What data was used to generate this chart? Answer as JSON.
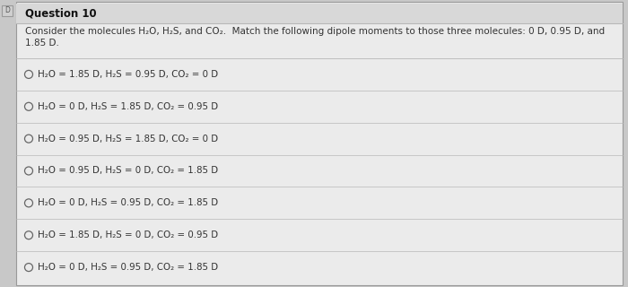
{
  "title": "Question 10",
  "prompt_line1": "Consider the molecules H₂O, H₂S, and CO₂.  Match the following dipole moments to those three molecules: 0 D, 0.95 D, and",
  "prompt_line2": "1.85 D.",
  "options": [
    "H₂O = 1.85 D, H₂S = 0.95 D, CO₂ = 0 D",
    "H₂O = 0 D, H₂S = 1.85 D, CO₂ = 0.95 D",
    "H₂O = 0.95 D, H₂S = 1.85 D, CO₂ = 0 D",
    "H₂O = 0.95 D, H₂S = 0 D, CO₂ = 1.85 D",
    "H₂O = 0 D, H₂S = 0.95 D, CO₂ = 1.85 D",
    "H₂O = 1.85 D, H₂S = 0 D, CO₂ = 0.95 D",
    "H₂O = 0 D, H₂S = 0.95 D, CO₂ = 1.85 D"
  ],
  "outer_bg": "#c8c8c8",
  "inner_bg": "#ebebeb",
  "header_bg": "#d8d8d8",
  "separator_color": "#b8b8b8",
  "title_color": "#111111",
  "text_color": "#333333",
  "option_color": "#333333",
  "circle_color": "#666666",
  "flag_bg": "#d0d0d0",
  "flag_border": "#999999",
  "title_fontsize": 8.5,
  "prompt_fontsize": 7.5,
  "option_fontsize": 7.4
}
